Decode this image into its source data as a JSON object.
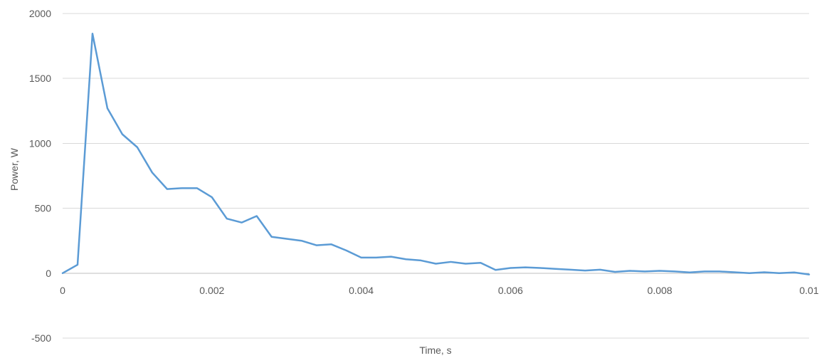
{
  "chart_data": {
    "type": "line",
    "title": "",
    "xlabel": "Time, s",
    "ylabel": "Power, W",
    "xlim": [
      0,
      0.01
    ],
    "ylim": [
      -500,
      2000
    ],
    "x_ticks": [
      0,
      0.002,
      0.004,
      0.006,
      0.008,
      0.01
    ],
    "x_tick_labels": [
      "0",
      "0.002",
      "0.004",
      "0.006",
      "0.008",
      "0.01"
    ],
    "y_ticks": [
      -500,
      0,
      500,
      1000,
      1500,
      2000
    ],
    "y_tick_labels": [
      "-500",
      "0",
      "500",
      "1000",
      "1500",
      "2000"
    ],
    "grid": true,
    "legend": "none",
    "colors": {
      "series": "#5b9bd5",
      "grid": "#d9d9d9",
      "axis": "#bfbfbf",
      "text": "#595959"
    },
    "series": [
      {
        "x": [
          0,
          0.0002,
          0.0004,
          0.0006,
          0.0008,
          0.001,
          0.0012,
          0.0014,
          0.0016,
          0.0018,
          0.002,
          0.0022,
          0.0024,
          0.0026,
          0.0028,
          0.003,
          0.0032,
          0.0034,
          0.0036,
          0.0038,
          0.004,
          0.0042,
          0.0044,
          0.0046,
          0.0048,
          0.005,
          0.0052,
          0.0054,
          0.0056,
          0.0058,
          0.006,
          0.0062,
          0.0064,
          0.0066,
          0.0068,
          0.007,
          0.0072,
          0.0074,
          0.0076,
          0.0078,
          0.008,
          0.0082,
          0.0084,
          0.0086,
          0.0088,
          0.009,
          0.0092,
          0.0094,
          0.0096,
          0.0098,
          0.01
        ],
        "y": [
          0,
          65,
          1845,
          1270,
          1070,
          970,
          775,
          648,
          655,
          655,
          585,
          420,
          390,
          440,
          280,
          265,
          250,
          215,
          222,
          175,
          120,
          120,
          127,
          107,
          98,
          73,
          87,
          73,
          80,
          25,
          40,
          45,
          40,
          33,
          27,
          20,
          27,
          10,
          18,
          13,
          18,
          13,
          6,
          13,
          13,
          7,
          0,
          7,
          0,
          6,
          -10
        ]
      }
    ]
  }
}
